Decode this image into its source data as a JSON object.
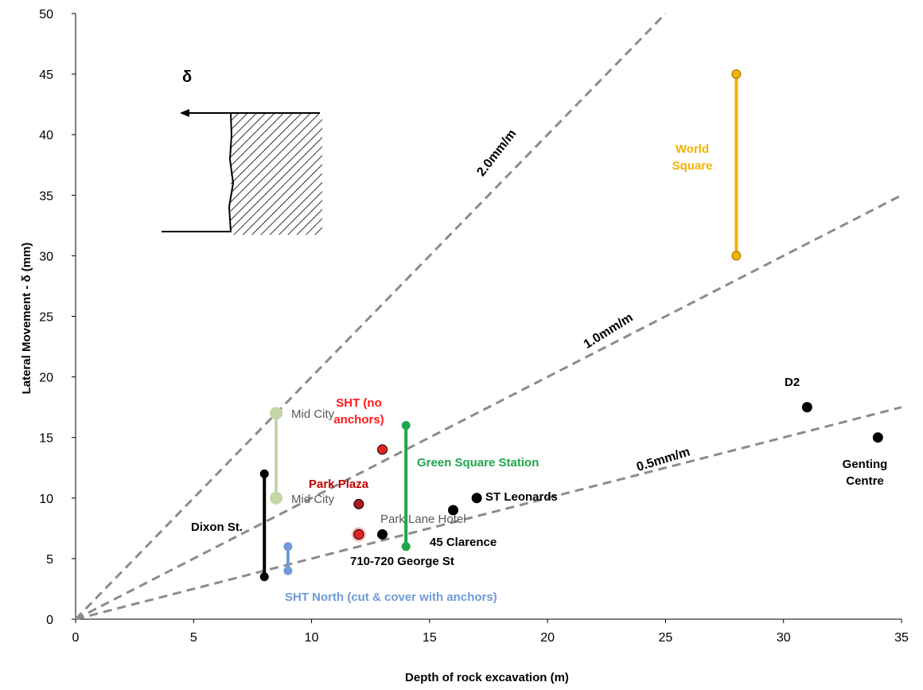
{
  "chart_data": {
    "type": "scatter",
    "x_label": "Depth of rock excavation (m)",
    "y_label": "Lateral Movement - δ (mm)",
    "inset_label": "δ",
    "xlim": [
      0,
      35
    ],
    "xticks": [
      0,
      5,
      10,
      15,
      20,
      25,
      30,
      35
    ],
    "ylim": [
      0,
      50
    ],
    "yticks": [
      0,
      5,
      10,
      15,
      20,
      25,
      30,
      35,
      40,
      45,
      50
    ],
    "grid": false,
    "reference_lines": [
      {
        "label": "2.0mm/m",
        "slope": 2.0,
        "color": "#8c8c8c"
      },
      {
        "label": "1.0mm/m",
        "slope": 1.0,
        "color": "#8c8c8c"
      },
      {
        "label": "0.5mm/m",
        "slope": 0.5,
        "color": "#8c8c8c"
      }
    ],
    "series": [
      {
        "name": "Dixon St.",
        "color": "#000000",
        "label_color": "#000000",
        "x": 8,
        "values": [
          3.5,
          12
        ]
      },
      {
        "name": "Mid City",
        "color": "#c4d6a8",
        "label_color": "#595959",
        "x": 8.5,
        "values": [
          10,
          17
        ]
      },
      {
        "name": "SHT North (cut & cover with anchors)",
        "color": "#6f9bd6",
        "label_color": "#6f9bd6",
        "x": 9,
        "values": [
          4,
          6
        ]
      },
      {
        "name": "Green Square Station",
        "color": "#1fa64a",
        "label_color": "#1fa64a",
        "x": 14,
        "values": [
          6,
          16
        ]
      },
      {
        "name": "World Square",
        "color": "#f2b300",
        "label_color": "#f2b300",
        "x": 28,
        "values": [
          30,
          45
        ]
      },
      {
        "name": "SHT (no anchors)",
        "color": "#e52421",
        "label_color": "#ff1a1a",
        "x": 13,
        "values": [
          14
        ]
      },
      {
        "name": "Park Plaza",
        "color": "#b0181d",
        "label_color": "#c00000",
        "x": 12,
        "values": [
          9.5
        ]
      },
      {
        "name": "Park Lane Hotel",
        "color": "#e52421",
        "label_color": "#595959",
        "x": 12,
        "values": [
          7
        ]
      },
      {
        "name": "710-720 George St",
        "color": "#000000",
        "label_color": "#000000",
        "x": 13,
        "values": [
          7
        ]
      },
      {
        "name": "45 Clarence",
        "color": "#000000",
        "label_color": "#000000",
        "x": 16,
        "values": [
          9
        ]
      },
      {
        "name": "ST Leonards",
        "color": "#000000",
        "label_color": "#000000",
        "x": 17,
        "values": [
          10
        ]
      },
      {
        "name": "D2",
        "color": "#000000",
        "label_color": "#000000",
        "x": 31,
        "values": [
          17.5
        ]
      },
      {
        "name": "Genting Centre",
        "color": "#000000",
        "label_color": "#000000",
        "x": 34,
        "values": [
          15
        ]
      }
    ]
  }
}
